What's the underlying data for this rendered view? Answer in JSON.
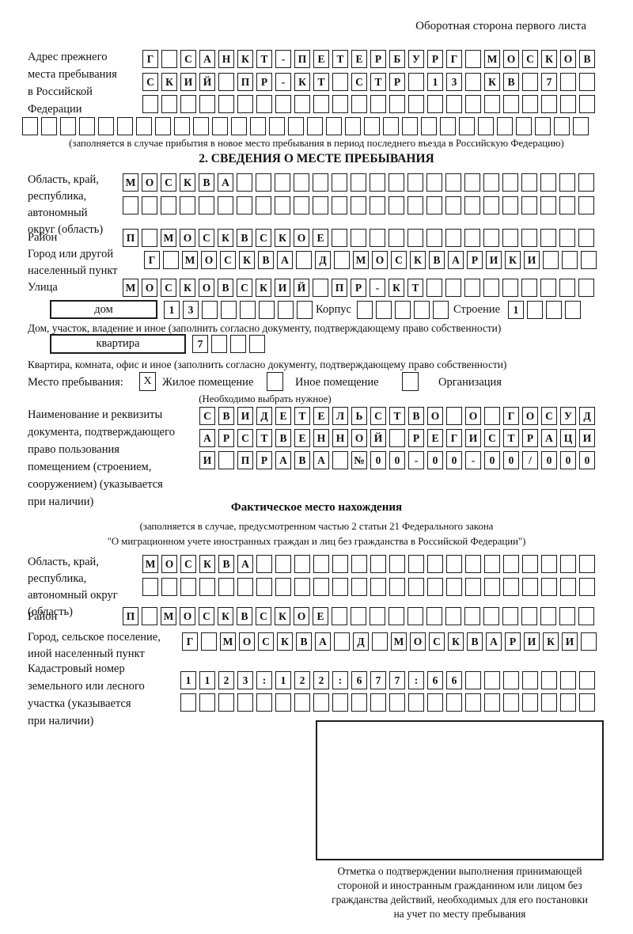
{
  "header": {
    "back_side_note": "Оборотная сторона первого листа"
  },
  "prev_address": {
    "label_lines": [
      "Адрес прежнего",
      "места пребывания",
      "в Российской",
      "Федерации"
    ],
    "rows": [
      [
        "Г",
        "",
        "С",
        "А",
        "Н",
        "К",
        "Т",
        "-",
        "П",
        "Е",
        "Т",
        "Е",
        "Р",
        "Б",
        "У",
        "Р",
        "Г",
        "",
        "М",
        "О",
        "С",
        "К",
        "О",
        "В"
      ],
      [
        "С",
        "К",
        "И",
        "Й",
        "",
        "П",
        "Р",
        "-",
        "К",
        "Т",
        "",
        "С",
        "Т",
        "Р",
        "",
        "1",
        "3",
        "",
        "К",
        "В",
        "",
        "7",
        "",
        ""
      ],
      [
        "",
        "",
        "",
        "",
        "",
        "",
        "",
        "",
        "",
        "",
        "",
        "",
        "",
        "",
        "",
        "",
        "",
        "",
        "",
        "",
        "",
        "",
        "",
        ""
      ],
      [
        "",
        "",
        "",
        "",
        "",
        "",
        "",
        "",
        "",
        "",
        "",
        "",
        "",
        "",
        "",
        "",
        "",
        "",
        "",
        "",
        "",
        "",
        "",
        "",
        "",
        "",
        "",
        "",
        "",
        ""
      ]
    ],
    "note": "(заполняется в случае прибытия в новое место пребывания в период последнего въезда в Российскую Федерацию)"
  },
  "section2": {
    "title": "2. СВЕДЕНИЯ О МЕСТЕ ПРЕБЫВАНИЯ",
    "region": {
      "label_lines": [
        "Область, край,",
        "республика,",
        "автономный",
        "округ (область)"
      ],
      "rows": [
        [
          "М",
          "О",
          "С",
          "К",
          "В",
          "А",
          "",
          "",
          "",
          "",
          "",
          "",
          "",
          "",
          "",
          "",
          "",
          "",
          "",
          "",
          "",
          "",
          "",
          "",
          ""
        ],
        [
          "",
          "",
          "",
          "",
          "",
          "",
          "",
          "",
          "",
          "",
          "",
          "",
          "",
          "",
          "",
          "",
          "",
          "",
          "",
          "",
          "",
          "",
          "",
          "",
          ""
        ]
      ]
    },
    "district": {
      "label": "Район",
      "row": [
        "П",
        "",
        "М",
        "О",
        "С",
        "К",
        "В",
        "С",
        "К",
        "О",
        "Е",
        "",
        "",
        "",
        "",
        "",
        "",
        "",
        "",
        "",
        "",
        "",
        "",
        "",
        ""
      ]
    },
    "city": {
      "label_lines": [
        "Город или другой",
        "населенный пункт"
      ],
      "row": [
        "Г",
        "",
        "М",
        "О",
        "С",
        "К",
        "В",
        "А",
        "",
        "Д",
        "",
        "М",
        "О",
        "С",
        "К",
        "В",
        "А",
        "Р",
        "И",
        "К",
        "И",
        "",
        "",
        ""
      ]
    },
    "street": {
      "label": "Улица",
      "row": [
        "М",
        "О",
        "С",
        "К",
        "О",
        "В",
        "С",
        "К",
        "И",
        "Й",
        "",
        "П",
        "Р",
        "-",
        "К",
        "Т",
        "",
        "",
        "",
        "",
        "",
        "",
        "",
        "",
        ""
      ]
    },
    "house": {
      "box_label": "дом",
      "cells": [
        "1",
        "3",
        "",
        "",
        "",
        "",
        "",
        ""
      ],
      "korpus_label": "Корпус",
      "korpus_cells": [
        "",
        "",
        "",
        "",
        ""
      ],
      "stroenie_label": "Строение",
      "stroenie_cells": [
        "1",
        "",
        "",
        ""
      ]
    },
    "house_note": "Дом, участок, владение и иное (заполнить согласно документу, подтверждающему право собственности)",
    "apartment": {
      "box_label": "квартира",
      "cells": [
        "7",
        "",
        "",
        ""
      ]
    },
    "apartment_note": "Квартира, комната, офис и иное (заполнить согласно документу, подтверждающему право собственности)",
    "stay_place": {
      "label": "Место пребывания:",
      "options": [
        {
          "label": "Жилое помещение",
          "mark": "X"
        },
        {
          "label": "Иное помещение",
          "mark": ""
        },
        {
          "label": "Организация",
          "mark": ""
        }
      ],
      "note": "(Необходимо выбрать нужное)"
    },
    "document": {
      "label_lines": [
        "Наименование и реквизиты",
        "документа, подтверждающего",
        "право пользования",
        "помещением (строением,",
        "сооружением) (указывается",
        "при наличии)"
      ],
      "rows": [
        [
          "С",
          "В",
          "И",
          "Д",
          "Е",
          "Т",
          "Е",
          "Л",
          "Ь",
          "С",
          "Т",
          "В",
          "О",
          "",
          "О",
          "",
          "Г",
          "О",
          "С",
          "У",
          "Д"
        ],
        [
          "А",
          "Р",
          "С",
          "Т",
          "В",
          "Е",
          "Н",
          "Н",
          "О",
          "Й",
          "",
          "Р",
          "Е",
          "Г",
          "И",
          "С",
          "Т",
          "Р",
          "А",
          "Ц",
          "И"
        ],
        [
          "И",
          "",
          "П",
          "Р",
          "А",
          "В",
          "А",
          "",
          "№",
          "0",
          "0",
          "-",
          "0",
          "0",
          "-",
          "0",
          "0",
          "/",
          "0",
          "0",
          "0"
        ]
      ]
    }
  },
  "actual_location": {
    "title": "Фактическое место нахождения",
    "note_lines": [
      "(заполняется в случае, предусмотренном частью 2 статьи 21 Федерального закона",
      "\"О миграционном учете иностранных граждан и лиц без гражданства в Российской Федерации\")"
    ],
    "region": {
      "label_lines": [
        "Область, край,",
        "республика,",
        "автономный округ",
        "(область)"
      ],
      "rows": [
        [
          "М",
          "О",
          "С",
          "К",
          "В",
          "А",
          "",
          "",
          "",
          "",
          "",
          "",
          "",
          "",
          "",
          "",
          "",
          "",
          "",
          "",
          "",
          "",
          "",
          ""
        ],
        [
          "",
          "",
          "",
          "",
          "",
          "",
          "",
          "",
          "",
          "",
          "",
          "",
          "",
          "",
          "",
          "",
          "",
          "",
          "",
          "",
          "",
          "",
          "",
          ""
        ]
      ]
    },
    "district": {
      "label": "Район",
      "row": [
        "П",
        "",
        "М",
        "О",
        "С",
        "К",
        "В",
        "С",
        "К",
        "О",
        "Е",
        "",
        "",
        "",
        "",
        "",
        "",
        "",
        "",
        "",
        "",
        "",
        "",
        "",
        ""
      ]
    },
    "city": {
      "label_lines": [
        "Город, сельское поселение,",
        "иной населенный пункт"
      ],
      "row": [
        "Г",
        "",
        "М",
        "О",
        "С",
        "К",
        "В",
        "А",
        "",
        "Д",
        "",
        "М",
        "О",
        "С",
        "К",
        "В",
        "А",
        "Р",
        "И",
        "К",
        "И",
        ""
      ]
    },
    "cadastral": {
      "label_lines": [
        "Кадастровый номер",
        "земельного или лесного",
        "участка (указывается",
        "при наличии)"
      ],
      "rows": [
        [
          "1",
          "1",
          "2",
          "3",
          ":",
          "1",
          "2",
          "2",
          ":",
          "6",
          "7",
          "7",
          ":",
          "6",
          "6",
          "",
          "",
          "",
          "",
          "",
          "",
          ""
        ],
        [
          "",
          "",
          "",
          "",
          "",
          "",
          "",
          "",
          "",
          "",
          "",
          "",
          "",
          "",
          "",
          "",
          "",
          "",
          "",
          "",
          "",
          ""
        ]
      ]
    }
  },
  "confirmation": {
    "caption_lines": [
      "Отметка о подтверждении выполнения принимающей",
      "стороной и иностранным гражданином или лицом без",
      "гражданства действий, необходимых для его постановки",
      "на учет по месту пребывания"
    ]
  }
}
